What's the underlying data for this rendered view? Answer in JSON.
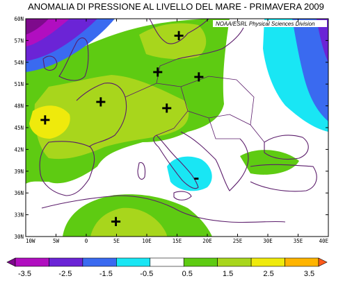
{
  "title": "ANOMALIA DI PRESSIONE AL LIVELLO DEL MARE - PRIMAVERA 2009",
  "credit": "NOAA/ESRL Physical Sciences Division",
  "lat_labels": [
    "60N",
    "57N",
    "54N",
    "51N",
    "48N",
    "45N",
    "42N",
    "39N",
    "36N",
    "33N",
    "30N"
  ],
  "lon_labels": [
    "10W",
    "5W",
    "0",
    "5E",
    "10E",
    "15E",
    "20E",
    "25E",
    "30E",
    "35E",
    "40E"
  ],
  "colorbar": {
    "labels": [
      "-3.5",
      "-2.5",
      "-1.5",
      "-0.5",
      "0.5",
      "1.5",
      "2.5",
      "3.5"
    ],
    "colors": [
      "#7e0a8c",
      "#b10ec0",
      "#6b24d6",
      "#3a6af0",
      "#19e6f4",
      "#ffffff",
      "#5ecb12",
      "#a8d61c",
      "#efea0c",
      "#ffb400",
      "#ff5a1a"
    ]
  },
  "symbols": [
    {
      "name": "plus-north-poland",
      "text": "+",
      "lon": 15.3,
      "lat": 57.7
    },
    {
      "name": "plus-germany",
      "text": "+",
      "lon": 11.8,
      "lat": 52.7
    },
    {
      "name": "plus-poland",
      "text": "+",
      "lon": 18.6,
      "lat": 52.0
    },
    {
      "name": "plus-france-east",
      "text": "+",
      "lon": 2.4,
      "lat": 48.6
    },
    {
      "name": "plus-alps",
      "text": "+",
      "lon": 13.3,
      "lat": 47.7
    },
    {
      "name": "plus-biscay",
      "text": "+",
      "lon": -6.8,
      "lat": 46.1
    },
    {
      "name": "plus-algeria",
      "text": "+",
      "lon": 4.9,
      "lat": 32.1
    },
    {
      "name": "minus-ionian",
      "text": "-",
      "lon": 18.2,
      "lat": 38.2
    }
  ]
}
